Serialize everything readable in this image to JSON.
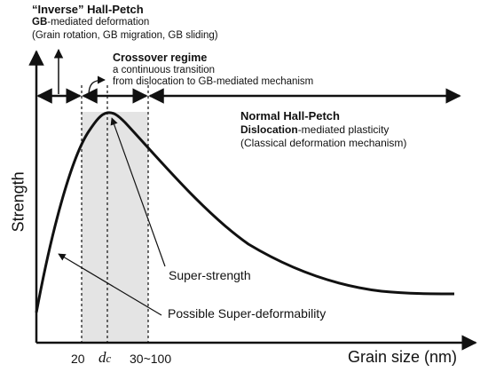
{
  "inverse": {
    "title": "“Inverse” Hall-Petch",
    "line1_bold": "GB",
    "line1_rest": "-mediated deformation",
    "line2": "(Grain rotation, GB migration, GB sliding)"
  },
  "crossover": {
    "title": "Crossover regime",
    "line1": "a continuous transition",
    "line2": "from dislocation to GB-mediated mechanism"
  },
  "normal": {
    "title": "Normal Hall-Petch",
    "line1_bold": "Dislocation",
    "line1_rest": "-mediated plasticity",
    "line2": "(Classical deformation mechanism)"
  },
  "labels": {
    "super_strength": "Super-strength",
    "super_deformability": "Possible Super-deformability"
  },
  "axes": {
    "ylabel": "Strength",
    "xlabel": "Grain size (nm)",
    "tick_20": "20",
    "tick_dc_italic": "d",
    "tick_dc_sub": "c",
    "tick_range": "30~100"
  },
  "colors": {
    "shade": "#e4e4e4",
    "ink": "#111111"
  }
}
